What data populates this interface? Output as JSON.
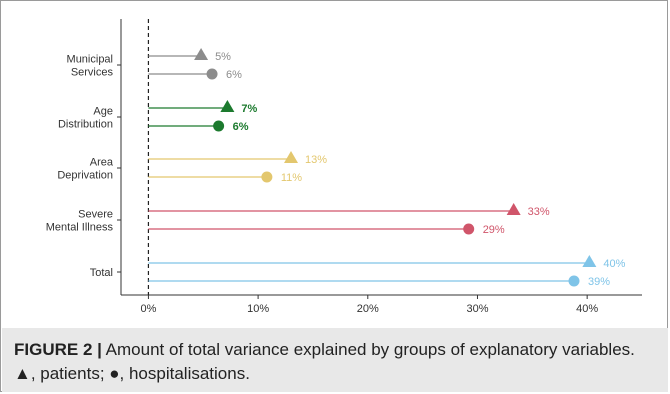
{
  "chart_data": {
    "type": "lollipop",
    "categories": [
      "Municipal\nServices",
      "Age\nDistribution",
      "Area\nDeprivation",
      "Severe\nMental Illness",
      "Total"
    ],
    "series": [
      {
        "marker": "triangle",
        "values": [
          5,
          7,
          13,
          33,
          40
        ]
      },
      {
        "marker": "circle",
        "values": [
          6,
          6,
          11,
          29,
          39
        ]
      }
    ],
    "value_labels": [
      [
        "5%",
        "6%"
      ],
      [
        "7%",
        "6%"
      ],
      [
        "13%",
        "11%"
      ],
      [
        "33%",
        "29%"
      ],
      [
        "40%",
        "39%"
      ]
    ],
    "precise_values": [
      [
        4.8,
        5.8
      ],
      [
        7.2,
        6.4
      ],
      [
        13.0,
        10.8
      ],
      [
        33.3,
        29.2
      ],
      [
        40.2,
        38.8
      ]
    ],
    "category_colors": [
      "#8c8c8c",
      "#1c7a2e",
      "#e3c76e",
      "#d0556a",
      "#7fc4e8"
    ],
    "x_ticks": [
      "0%",
      "10%",
      "20%",
      "30%",
      "40%"
    ],
    "xlim": [
      -2.5,
      45
    ],
    "reference_line": {
      "x": 0,
      "style": "dashed"
    },
    "grid": false,
    "legend": "none"
  },
  "caption": {
    "label": "FIGURE 2 |",
    "text": " Amount of total variance explained by groups of explanatory variables. ▲, patients; ●, hospitalisations."
  }
}
